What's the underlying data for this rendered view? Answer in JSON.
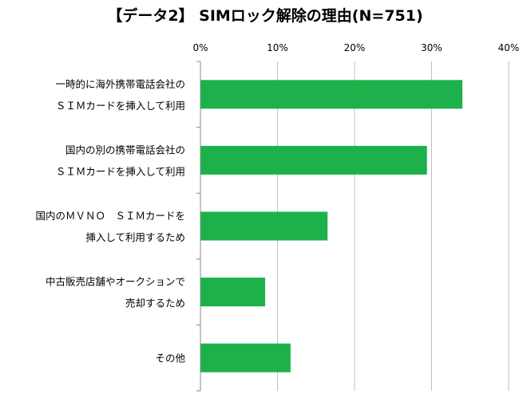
{
  "title": "【データ2】 SIMロック解除の理由(N=751)",
  "chart_data": {
    "type": "bar",
    "orientation": "horizontal",
    "title": "【データ2】 SIMロック解除の理由(N=751)",
    "xlabel": "",
    "ylabel": "",
    "x_axis_position": "top",
    "xlim": [
      0,
      40
    ],
    "xticks": [
      0,
      10,
      20,
      30,
      40
    ],
    "xtick_labels": [
      "0%",
      "10%",
      "20%",
      "30%",
      "40%"
    ],
    "unit": "%",
    "grid": true,
    "legend": "none",
    "bar_color": "#1db14b",
    "categories": [
      [
        "一時的に海外携帯電話会社の",
        "ＳＩＭカードを挿入して利用"
      ],
      [
        "国内の別の携帯電話会社の",
        "ＳＩＭカードを挿入して利用"
      ],
      [
        "国内のＭＶＮＯ　ＳＩＭカードを",
        "挿入して利用するため"
      ],
      [
        "中古販売店舗やオークションで",
        "売却するため"
      ],
      [
        "その他"
      ]
    ],
    "values": [
      34.0,
      29.4,
      16.5,
      8.4,
      11.7
    ]
  }
}
